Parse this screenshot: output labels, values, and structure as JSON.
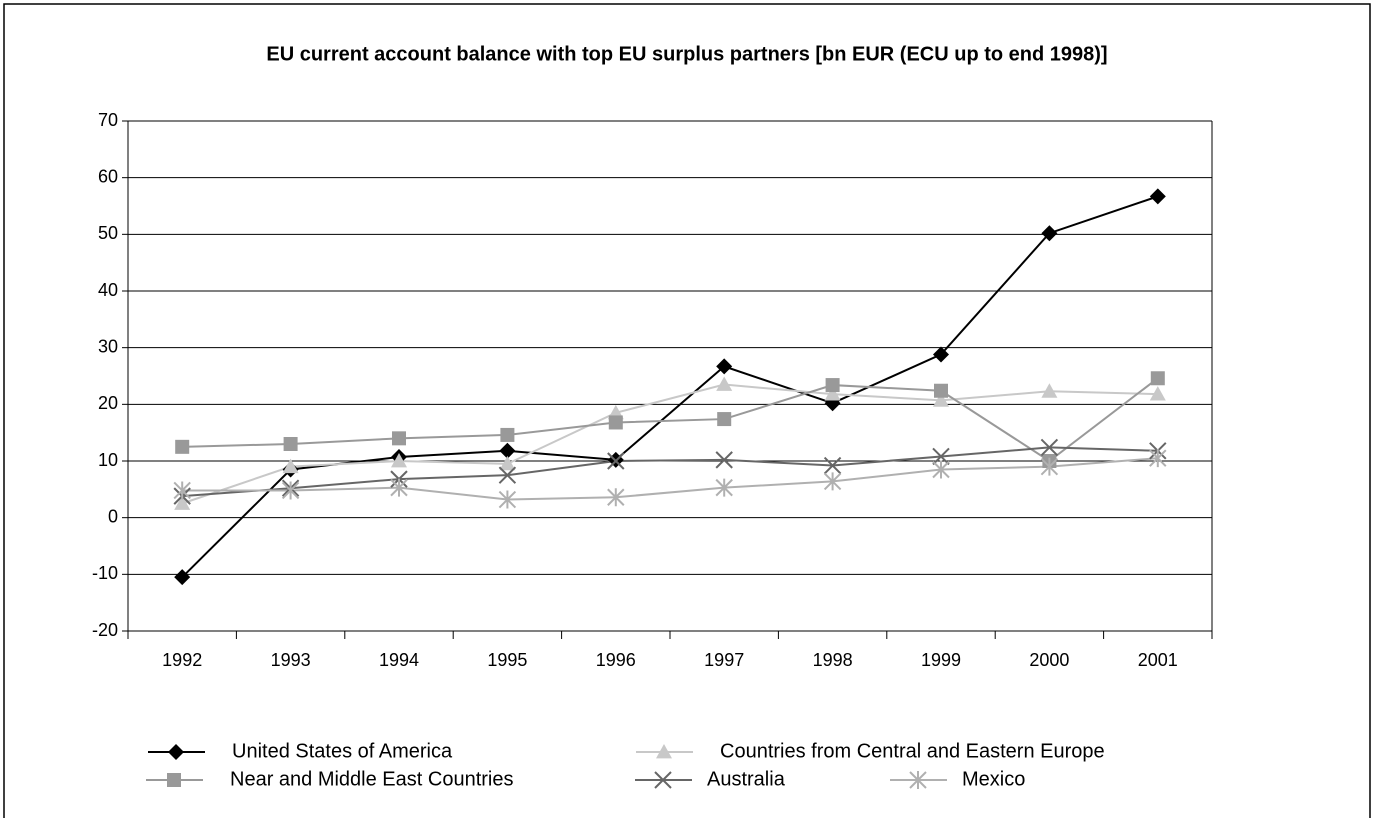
{
  "chart_data": {
    "type": "line",
    "title": "EU current account balance with top EU surplus partners [bn EUR (ECU up to end 1998)]",
    "categories": [
      "1992",
      "1993",
      "1994",
      "1995",
      "1996",
      "1997",
      "1998",
      "1999",
      "2000",
      "2001"
    ],
    "series": [
      {
        "name": "United States of America",
        "color": "#000000",
        "marker": "diamond",
        "values": [
          -10.5,
          8.5,
          10.7,
          11.8,
          10.2,
          26.7,
          20.2,
          28.8,
          50.2,
          56.7
        ]
      },
      {
        "name": "Countries from Central and Eastern Europe",
        "color": "#c8c8c8",
        "marker": "triangle",
        "values": [
          2.5,
          9.0,
          10.0,
          9.5,
          18.5,
          23.5,
          21.8,
          20.7,
          22.3,
          21.8
        ]
      },
      {
        "name": "Near and Middle East Countries",
        "color": "#999999",
        "marker": "square",
        "values": [
          12.5,
          13.0,
          14.0,
          14.6,
          16.8,
          17.4,
          23.4,
          22.4,
          10.0,
          24.6
        ]
      },
      {
        "name": "Australia",
        "color": "#666666",
        "marker": "x",
        "values": [
          3.8,
          5.2,
          6.8,
          7.5,
          10.0,
          10.2,
          9.2,
          10.8,
          12.4,
          11.8
        ]
      },
      {
        "name": "Mexico",
        "color": "#b0b0b0",
        "marker": "star",
        "values": [
          4.8,
          4.8,
          5.3,
          3.2,
          3.6,
          5.3,
          6.4,
          8.5,
          9.0,
          10.5
        ]
      }
    ],
    "ylim": [
      -20,
      70
    ],
    "yticks": [
      -20,
      -10,
      0,
      10,
      20,
      30,
      40,
      50,
      60,
      70
    ],
    "grid": true
  }
}
